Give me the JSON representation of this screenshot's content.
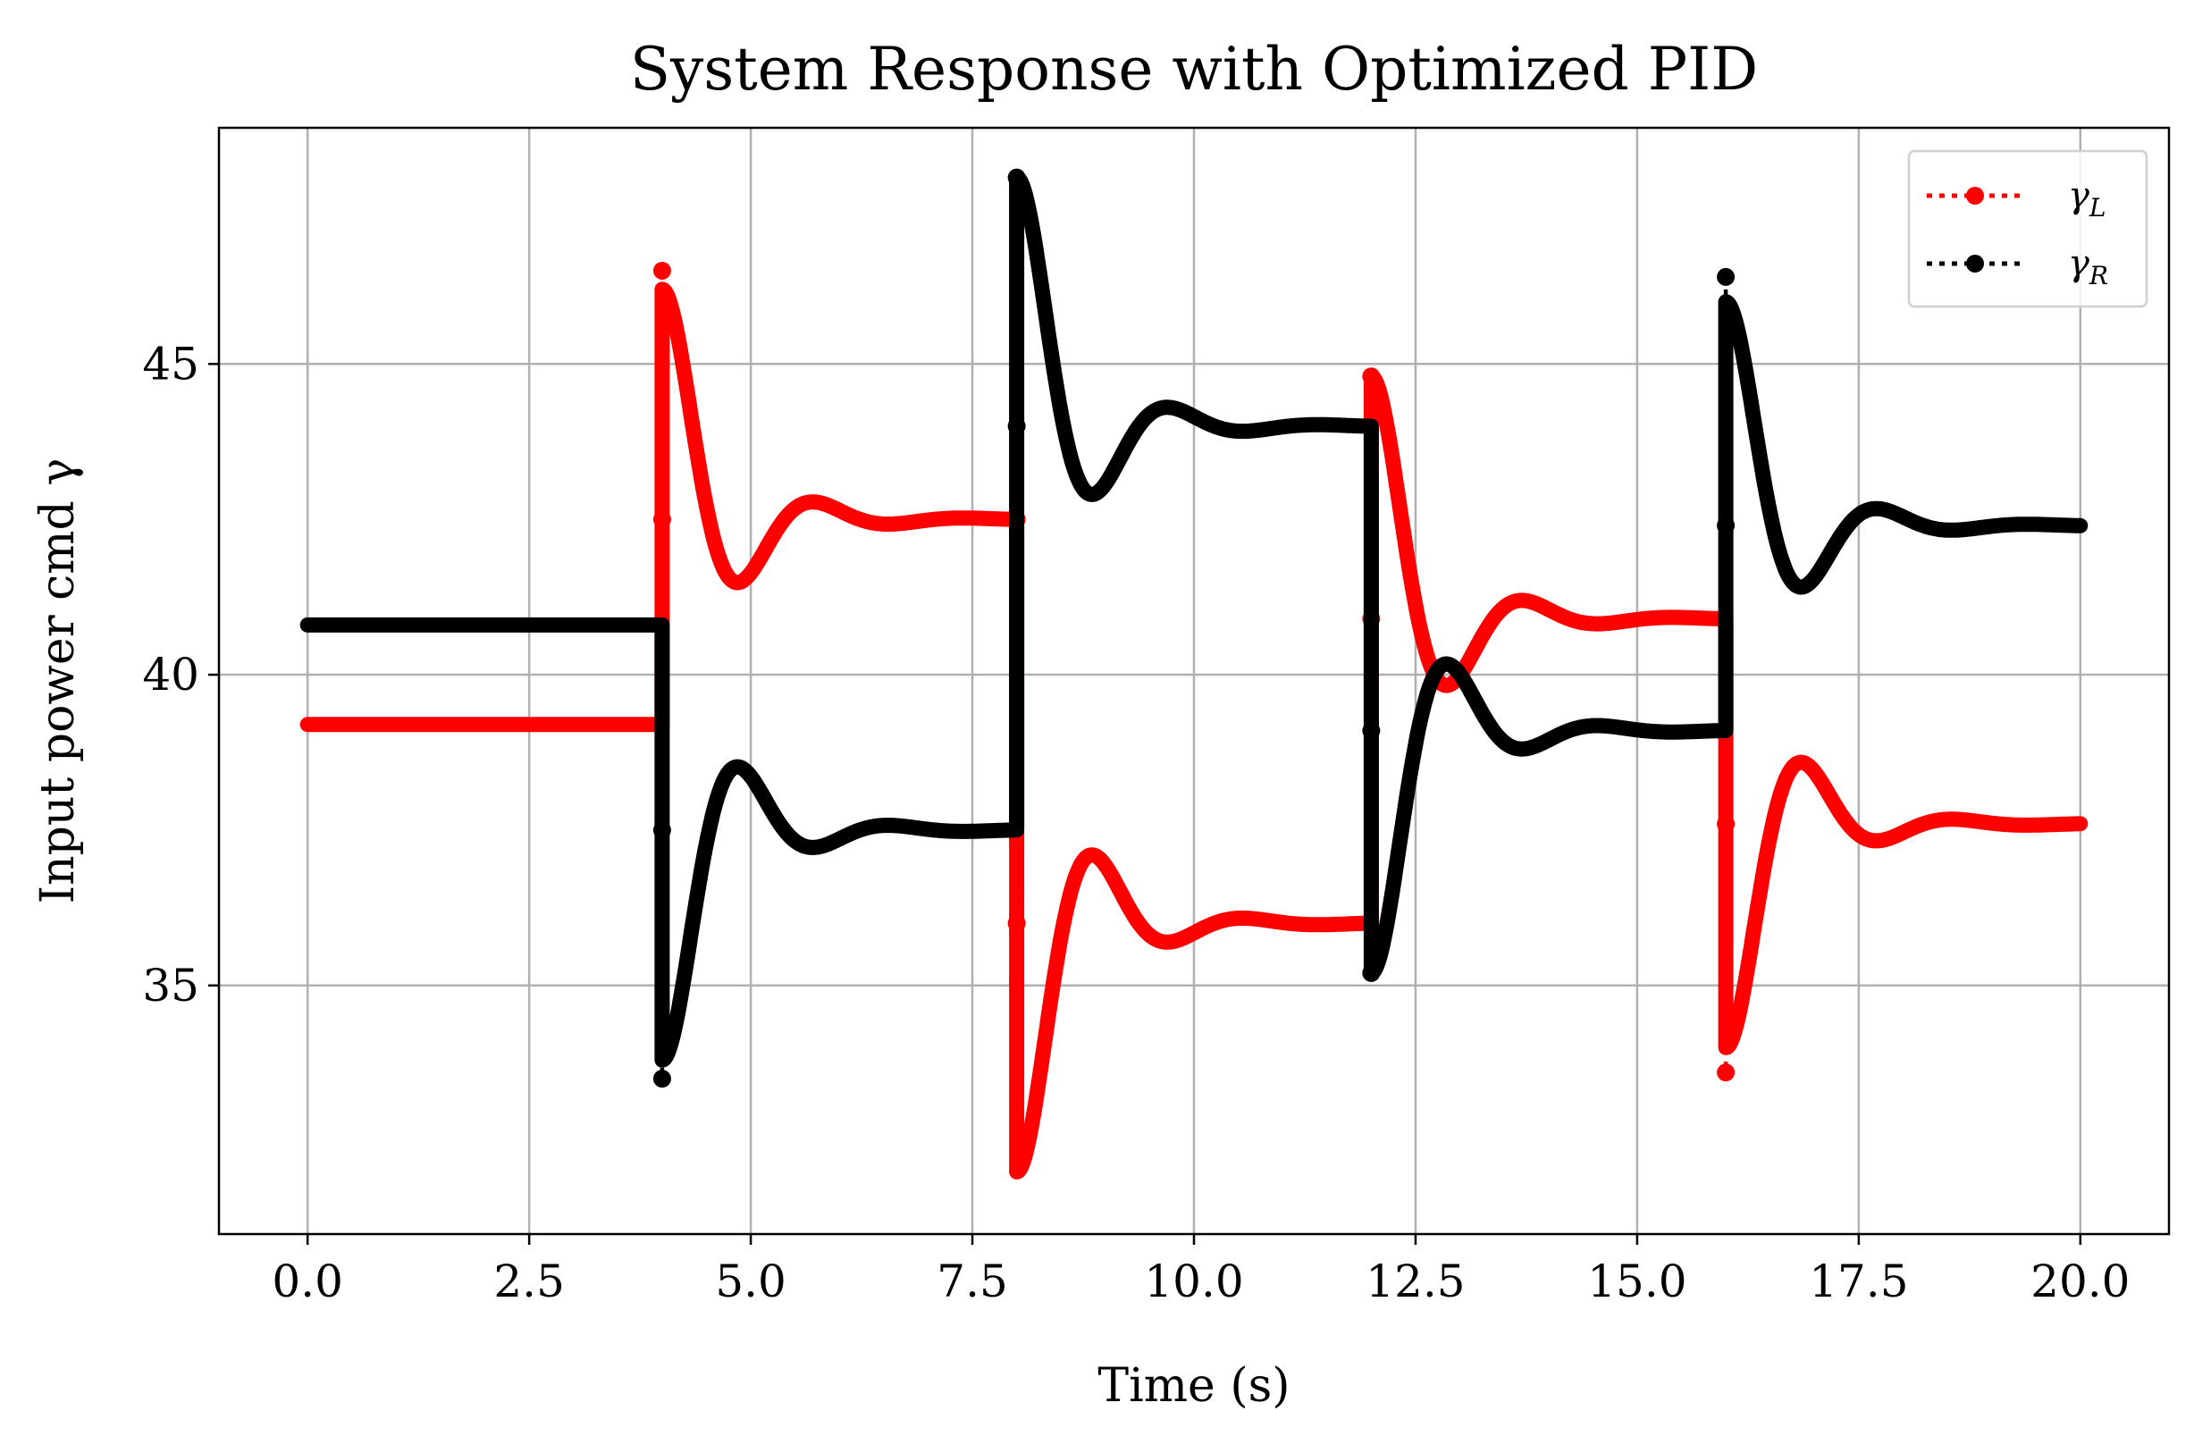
{
  "chart_data": {
    "type": "line",
    "title": "System Response with Optimized PID",
    "xlabel": "Time (s)",
    "ylabel": "Input power cmd γ",
    "xlim": [
      -1.0,
      21.0
    ],
    "ylim": [
      31.0,
      48.8
    ],
    "xticks": [
      0.0,
      2.5,
      5.0,
      7.5,
      10.0,
      12.5,
      15.0,
      17.5,
      20.0
    ],
    "xtick_labels": [
      "0.0",
      "2.5",
      "5.0",
      "7.5",
      "10.0",
      "12.5",
      "15.0",
      "17.5",
      "20.0"
    ],
    "yticks": [
      35,
      40,
      45
    ],
    "ytick_labels": [
      "35",
      "40",
      "45"
    ],
    "grid": true,
    "legend_position": "top-right",
    "series": [
      {
        "name": "γ_L",
        "legend_main": "γ",
        "legend_sub": "L",
        "color": "#ff0000",
        "step_times": [
          4,
          8,
          12,
          16
        ],
        "initial": 39.2,
        "segments": [
          {
            "t0": 4,
            "start": 46.2,
            "target": 42.5
          },
          {
            "t0": 8,
            "start": 32.0,
            "target": 36.0
          },
          {
            "t0": 12,
            "start": 44.8,
            "target": 40.9
          },
          {
            "t0": 16,
            "start": 34.0,
            "target": 37.6
          }
        ],
        "jump_markers": [
          {
            "x": 4,
            "y": 46.5
          },
          {
            "x": 4,
            "y": 42.5
          },
          {
            "x": 8,
            "y": 42.5
          },
          {
            "x": 8,
            "y": 36.0
          },
          {
            "x": 12,
            "y": 44.8
          },
          {
            "x": 12,
            "y": 40.9
          },
          {
            "x": 16,
            "y": 37.6
          },
          {
            "x": 16,
            "y": 33.6
          }
        ]
      },
      {
        "name": "γ_R",
        "legend_main": "γ",
        "legend_sub": "R",
        "color": "#000000",
        "step_times": [
          4,
          8,
          12,
          16
        ],
        "initial": 40.8,
        "segments": [
          {
            "t0": 4,
            "start": 33.8,
            "target": 37.5
          },
          {
            "t0": 8,
            "start": 48.0,
            "target": 44.0
          },
          {
            "t0": 12,
            "start": 35.2,
            "target": 39.1
          },
          {
            "t0": 16,
            "start": 46.0,
            "target": 42.4
          }
        ],
        "jump_markers": [
          {
            "x": 4,
            "y": 37.5
          },
          {
            "x": 4,
            "y": 33.5
          },
          {
            "x": 8,
            "y": 44.0
          },
          {
            "x": 8,
            "y": 48.0
          },
          {
            "x": 12,
            "y": 39.1
          },
          {
            "x": 12,
            "y": 35.2
          },
          {
            "x": 16,
            "y": 46.4
          },
          {
            "x": 16,
            "y": 42.4
          }
        ]
      }
    ],
    "t_end": 20.0
  }
}
